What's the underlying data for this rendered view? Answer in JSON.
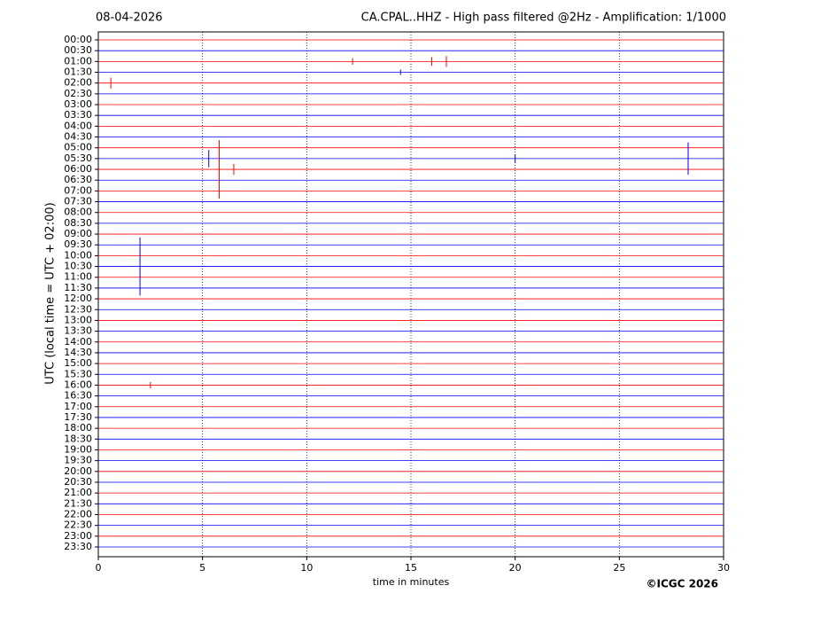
{
  "chart_data": {
    "type": "helicorder",
    "date": "08-04-2026",
    "title": "CA.CPAL..HHZ - High pass filtered @2Hz - Amplification: 1/1000",
    "y_label": "UTC (local time = UTC + 02:00)",
    "x_label": "time in minutes",
    "copyright": "©ICGC 2026",
    "categories": [
      "00:00",
      "00:30",
      "01:00",
      "01:30",
      "02:00",
      "02:30",
      "03:00",
      "03:30",
      "04:00",
      "04:30",
      "05:00",
      "05:30",
      "06:00",
      "06:30",
      "07:00",
      "07:30",
      "08:00",
      "08:30",
      "09:00",
      "09:30",
      "10:00",
      "10:30",
      "11:00",
      "11:30",
      "12:00",
      "12:30",
      "13:00",
      "13:30",
      "14:00",
      "14:30",
      "15:00",
      "15:30",
      "16:00",
      "16:30",
      "17:00",
      "17:30",
      "18:00",
      "18:30",
      "19:00",
      "19:30",
      "20:00",
      "20:30",
      "21:00",
      "21:30",
      "22:00",
      "22:30",
      "23:00",
      "23:30"
    ],
    "colors": [
      "#ff0000",
      "#0000ff"
    ],
    "xlim": [
      0,
      30
    ],
    "xticks": [
      0,
      5,
      10,
      15,
      20,
      25,
      30
    ],
    "grid": true,
    "events": [
      {
        "time": "01:00",
        "minute": 12.2,
        "amplitude": 0.3
      },
      {
        "time": "01:00",
        "minute": 16.0,
        "amplitude": 0.4
      },
      {
        "time": "01:00",
        "minute": 16.7,
        "amplitude": 0.5
      },
      {
        "time": "01:30",
        "minute": 14.5,
        "amplitude": 0.25
      },
      {
        "time": "02:00",
        "minute": 0.6,
        "amplitude": 0.5
      },
      {
        "time": "05:30",
        "minute": 5.3,
        "amplitude": 0.8
      },
      {
        "time": "05:30",
        "minute": 20.0,
        "amplitude": 0.4
      },
      {
        "time": "05:30",
        "minute": 28.3,
        "amplitude": 1.5
      },
      {
        "time": "06:00",
        "minute": 5.8,
        "amplitude": 2.7
      },
      {
        "time": "06:00",
        "minute": 6.5,
        "amplitude": 0.5
      },
      {
        "time": "10:30",
        "minute": 2.0,
        "amplitude": 2.7
      },
      {
        "time": "16:00",
        "minute": 2.5,
        "amplitude": 0.3
      }
    ]
  }
}
